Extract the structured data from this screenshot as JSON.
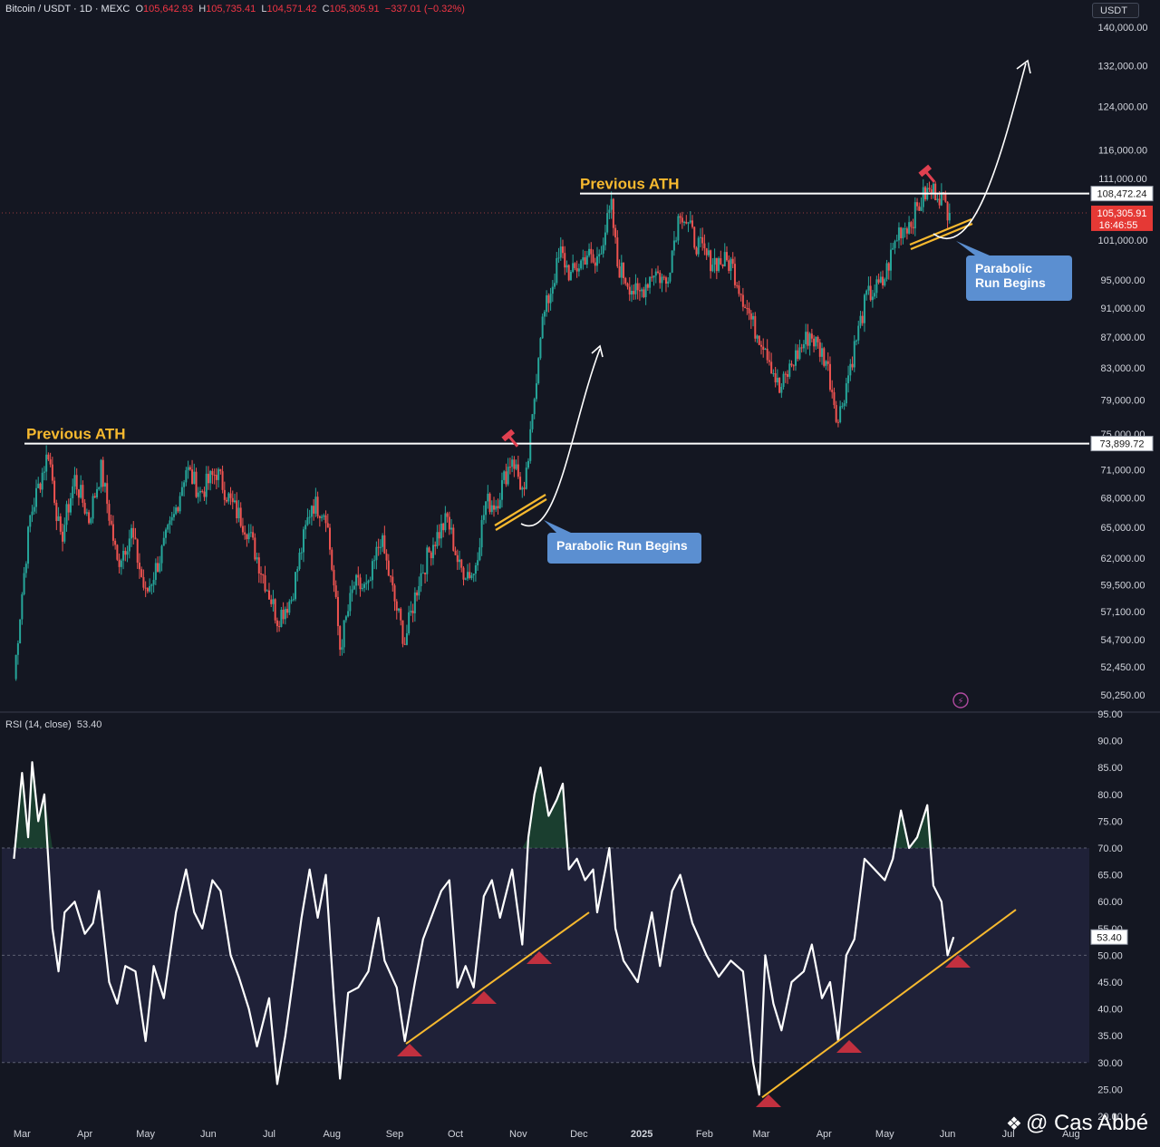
{
  "header": {
    "symbol": "Bitcoin / USDT · 1D · MEXC",
    "o_label": "O",
    "o_value": "105,642.93",
    "h_label": "H",
    "h_value": "105,735.41",
    "l_label": "L",
    "l_value": "104,571.42",
    "c_label": "C",
    "c_value": "105,305.91",
    "change": "−337.01 (−0.32%)"
  },
  "currency_button": "USDT",
  "watermark": "@ Cas Abbé",
  "colors": {
    "background": "#141722",
    "up_candle": "#26a69a",
    "down_candle": "#ef5350",
    "annotation_yellow": "#f7b92f",
    "callout_blue": "#5b8fd1",
    "price_tag_red": "#e53935",
    "rsi_line": "#ffffff",
    "rsi_band": "#1f2138",
    "marker_red": "#c2303f"
  },
  "chart_data": [
    {
      "type": "candlestick",
      "title": "Bitcoin / USDT · 1D · MEXC",
      "price_axis_labels": [
        "140,000.00",
        "132,000.00",
        "124,000.00",
        "116,000.00",
        "111,000.00",
        "101,000.00",
        "95,000.00",
        "91,000.00",
        "87,000.00",
        "83,000.00",
        "79,000.00",
        "75,000.00",
        "71,000.00",
        "68,000.00",
        "65,000.00",
        "62,000.00",
        "59,500.00",
        "57,100.00",
        "54,700.00",
        "52,450.00",
        "50,250.00"
      ],
      "x_tick_labels": [
        "Mar",
        "Apr",
        "May",
        "Jun",
        "Jul",
        "Aug",
        "Sep",
        "Oct",
        "Nov",
        "Dec",
        "2025",
        "Feb",
        "Mar",
        "Apr",
        "May",
        "Jun",
        "Jul",
        "Aug"
      ],
      "scale": "log",
      "ylim": [
        49000,
        142000
      ],
      "current_price": "105,305.91",
      "countdown": "16:46:55",
      "levels": [
        {
          "label": "Previous ATH",
          "value": 73899.72,
          "tag": "73,899.72"
        },
        {
          "label": "Previous ATH",
          "value": 108472.24,
          "tag": "108,472.24"
        }
      ],
      "callouts": [
        "Parabolic Run Begins",
        "Parabolic Run Begins"
      ],
      "close_path": [
        {
          "date": "2024-02-26",
          "close": 51500
        },
        {
          "date": "2024-03-05",
          "close": 66000
        },
        {
          "date": "2024-03-14",
          "close": 73000
        },
        {
          "date": "2024-03-20",
          "close": 63500
        },
        {
          "date": "2024-03-27",
          "close": 70000
        },
        {
          "date": "2024-04-03",
          "close": 65800
        },
        {
          "date": "2024-04-09",
          "close": 71000
        },
        {
          "date": "2024-04-17",
          "close": 61500
        },
        {
          "date": "2024-04-24",
          "close": 64500
        },
        {
          "date": "2024-05-01",
          "close": 58500
        },
        {
          "date": "2024-05-08",
          "close": 62000
        },
        {
          "date": "2024-05-15",
          "close": 66000
        },
        {
          "date": "2024-05-21",
          "close": 71200
        },
        {
          "date": "2024-05-28",
          "close": 68500
        },
        {
          "date": "2024-06-05",
          "close": 70800
        },
        {
          "date": "2024-06-12",
          "close": 67500
        },
        {
          "date": "2024-06-20",
          "close": 64900
        },
        {
          "date": "2024-06-26",
          "close": 61500
        },
        {
          "date": "2024-07-05",
          "close": 56500
        },
        {
          "date": "2024-07-12",
          "close": 58300
        },
        {
          "date": "2024-07-22",
          "close": 67500
        },
        {
          "date": "2024-07-29",
          "close": 66500
        },
        {
          "date": "2024-08-05",
          "close": 54000
        },
        {
          "date": "2024-08-12",
          "close": 59500
        },
        {
          "date": "2024-08-19",
          "close": 59000
        },
        {
          "date": "2024-08-25",
          "close": 64000
        },
        {
          "date": "2024-09-01",
          "close": 58000
        },
        {
          "date": "2024-09-06",
          "close": 54500
        },
        {
          "date": "2024-09-13",
          "close": 60000
        },
        {
          "date": "2024-09-20",
          "close": 63500
        },
        {
          "date": "2024-09-27",
          "close": 65800
        },
        {
          "date": "2024-10-03",
          "close": 61000
        },
        {
          "date": "2024-10-10",
          "close": 60500
        },
        {
          "date": "2024-10-16",
          "close": 67500
        },
        {
          "date": "2024-10-21",
          "close": 67400
        },
        {
          "date": "2024-10-29",
          "close": 72500
        },
        {
          "date": "2024-11-04",
          "close": 68000
        },
        {
          "date": "2024-11-08",
          "close": 76500
        },
        {
          "date": "2024-11-12",
          "close": 88000
        },
        {
          "date": "2024-11-22",
          "close": 99000
        },
        {
          "date": "2024-11-27",
          "close": 95500
        },
        {
          "date": "2024-12-05",
          "close": 99000
        },
        {
          "date": "2024-12-09",
          "close": 97000
        },
        {
          "date": "2024-12-17",
          "close": 106000
        },
        {
          "date": "2024-12-20",
          "close": 97200
        },
        {
          "date": "2024-12-30",
          "close": 92500
        },
        {
          "date": "2025-01-07",
          "close": 96500
        },
        {
          "date": "2025-01-13",
          "close": 94500
        },
        {
          "date": "2025-01-20",
          "close": 106000
        },
        {
          "date": "2025-01-27",
          "close": 101000
        },
        {
          "date": "2025-02-03",
          "close": 98000
        },
        {
          "date": "2025-02-14",
          "close": 97500
        },
        {
          "date": "2025-02-25",
          "close": 88500
        },
        {
          "date": "2025-03-03",
          "close": 86000
        },
        {
          "date": "2025-03-10",
          "close": 80000
        },
        {
          "date": "2025-03-17",
          "close": 84000
        },
        {
          "date": "2025-03-25",
          "close": 87500
        },
        {
          "date": "2025-04-02",
          "close": 84000
        },
        {
          "date": "2025-04-08",
          "close": 76500
        },
        {
          "date": "2025-04-15",
          "close": 84500
        },
        {
          "date": "2025-04-22",
          "close": 92500
        },
        {
          "date": "2025-04-30",
          "close": 94500
        },
        {
          "date": "2025-05-08",
          "close": 102500
        },
        {
          "date": "2025-05-14",
          "close": 104000
        },
        {
          "date": "2025-05-21",
          "close": 108500
        },
        {
          "date": "2025-05-27",
          "close": 109000
        },
        {
          "date": "2025-06-02",
          "close": 105300
        }
      ]
    },
    {
      "type": "line",
      "title": "RSI (14, close)",
      "last_value": "53.40",
      "y_tick_labels": [
        "95.00",
        "90.00",
        "85.00",
        "80.00",
        "75.00",
        "70.00",
        "65.00",
        "60.00",
        "55.00",
        "50.00",
        "45.00",
        "40.00",
        "35.00",
        "30.00",
        "25.00",
        "20.00"
      ],
      "ylim": [
        20,
        95
      ],
      "overbought": 70,
      "oversold": 30,
      "midline": 50,
      "series": [
        {
          "date": "2024-02-26",
          "rsi": 68
        },
        {
          "date": "2024-03-01",
          "rsi": 84
        },
        {
          "date": "2024-03-04",
          "rsi": 72
        },
        {
          "date": "2024-03-06",
          "rsi": 86
        },
        {
          "date": "2024-03-09",
          "rsi": 75
        },
        {
          "date": "2024-03-12",
          "rsi": 80
        },
        {
          "date": "2024-03-16",
          "rsi": 55
        },
        {
          "date": "2024-03-19",
          "rsi": 47
        },
        {
          "date": "2024-03-22",
          "rsi": 58
        },
        {
          "date": "2024-03-27",
          "rsi": 60
        },
        {
          "date": "2024-04-01",
          "rsi": 54
        },
        {
          "date": "2024-04-05",
          "rsi": 56
        },
        {
          "date": "2024-04-08",
          "rsi": 62
        },
        {
          "date": "2024-04-13",
          "rsi": 45
        },
        {
          "date": "2024-04-17",
          "rsi": 41
        },
        {
          "date": "2024-04-21",
          "rsi": 48
        },
        {
          "date": "2024-04-26",
          "rsi": 47
        },
        {
          "date": "2024-05-01",
          "rsi": 34
        },
        {
          "date": "2024-05-05",
          "rsi": 48
        },
        {
          "date": "2024-05-10",
          "rsi": 42
        },
        {
          "date": "2024-05-16",
          "rsi": 58
        },
        {
          "date": "2024-05-21",
          "rsi": 66
        },
        {
          "date": "2024-05-25",
          "rsi": 58
        },
        {
          "date": "2024-05-29",
          "rsi": 55
        },
        {
          "date": "2024-06-03",
          "rsi": 64
        },
        {
          "date": "2024-06-07",
          "rsi": 62
        },
        {
          "date": "2024-06-12",
          "rsi": 50
        },
        {
          "date": "2024-06-16",
          "rsi": 46
        },
        {
          "date": "2024-06-21",
          "rsi": 40
        },
        {
          "date": "2024-06-25",
          "rsi": 33
        },
        {
          "date": "2024-07-01",
          "rsi": 42
        },
        {
          "date": "2024-07-05",
          "rsi": 26
        },
        {
          "date": "2024-07-09",
          "rsi": 35
        },
        {
          "date": "2024-07-13",
          "rsi": 46
        },
        {
          "date": "2024-07-17",
          "rsi": 57
        },
        {
          "date": "2024-07-21",
          "rsi": 66
        },
        {
          "date": "2024-07-25",
          "rsi": 57
        },
        {
          "date": "2024-07-29",
          "rsi": 65
        },
        {
          "date": "2024-08-02",
          "rsi": 42
        },
        {
          "date": "2024-08-05",
          "rsi": 27
        },
        {
          "date": "2024-08-09",
          "rsi": 43
        },
        {
          "date": "2024-08-14",
          "rsi": 44
        },
        {
          "date": "2024-08-19",
          "rsi": 47
        },
        {
          "date": "2024-08-24",
          "rsi": 57
        },
        {
          "date": "2024-08-27",
          "rsi": 49
        },
        {
          "date": "2024-09-02",
          "rsi": 44
        },
        {
          "date": "2024-09-06",
          "rsi": 34
        },
        {
          "date": "2024-09-11",
          "rsi": 45
        },
        {
          "date": "2024-09-15",
          "rsi": 53
        },
        {
          "date": "2024-09-20",
          "rsi": 58
        },
        {
          "date": "2024-09-24",
          "rsi": 62
        },
        {
          "date": "2024-09-28",
          "rsi": 64
        },
        {
          "date": "2024-10-02",
          "rsi": 44
        },
        {
          "date": "2024-10-06",
          "rsi": 48
        },
        {
          "date": "2024-10-10",
          "rsi": 44
        },
        {
          "date": "2024-10-15",
          "rsi": 61
        },
        {
          "date": "2024-10-19",
          "rsi": 64
        },
        {
          "date": "2024-10-23",
          "rsi": 57
        },
        {
          "date": "2024-10-29",
          "rsi": 66
        },
        {
          "date": "2024-11-03",
          "rsi": 52
        },
        {
          "date": "2024-11-06",
          "rsi": 72
        },
        {
          "date": "2024-11-09",
          "rsi": 80
        },
        {
          "date": "2024-11-12",
          "rsi": 85
        },
        {
          "date": "2024-11-16",
          "rsi": 76
        },
        {
          "date": "2024-11-20",
          "rsi": 79
        },
        {
          "date": "2024-11-23",
          "rsi": 82
        },
        {
          "date": "2024-11-26",
          "rsi": 66
        },
        {
          "date": "2024-11-30",
          "rsi": 68
        },
        {
          "date": "2024-12-04",
          "rsi": 64
        },
        {
          "date": "2024-12-08",
          "rsi": 66
        },
        {
          "date": "2024-12-10",
          "rsi": 58
        },
        {
          "date": "2024-12-16",
          "rsi": 70
        },
        {
          "date": "2024-12-19",
          "rsi": 55
        },
        {
          "date": "2024-12-23",
          "rsi": 49
        },
        {
          "date": "2024-12-30",
          "rsi": 45
        },
        {
          "date": "2025-01-06",
          "rsi": 58
        },
        {
          "date": "2025-01-10",
          "rsi": 48
        },
        {
          "date": "2025-01-16",
          "rsi": 62
        },
        {
          "date": "2025-01-20",
          "rsi": 65
        },
        {
          "date": "2025-01-26",
          "rsi": 56
        },
        {
          "date": "2025-02-02",
          "rsi": 50
        },
        {
          "date": "2025-02-08",
          "rsi": 46
        },
        {
          "date": "2025-02-14",
          "rsi": 49
        },
        {
          "date": "2025-02-20",
          "rsi": 47
        },
        {
          "date": "2025-02-25",
          "rsi": 30
        },
        {
          "date": "2025-02-28",
          "rsi": 24
        },
        {
          "date": "2025-03-03",
          "rsi": 50
        },
        {
          "date": "2025-03-07",
          "rsi": 41
        },
        {
          "date": "2025-03-11",
          "rsi": 36
        },
        {
          "date": "2025-03-16",
          "rsi": 45
        },
        {
          "date": "2025-03-22",
          "rsi": 47
        },
        {
          "date": "2025-03-26",
          "rsi": 52
        },
        {
          "date": "2025-03-31",
          "rsi": 42
        },
        {
          "date": "2025-04-04",
          "rsi": 45
        },
        {
          "date": "2025-04-08",
          "rsi": 34
        },
        {
          "date": "2025-04-12",
          "rsi": 50
        },
        {
          "date": "2025-04-16",
          "rsi": 53
        },
        {
          "date": "2025-04-21",
          "rsi": 68
        },
        {
          "date": "2025-04-26",
          "rsi": 66
        },
        {
          "date": "2025-05-01",
          "rsi": 64
        },
        {
          "date": "2025-05-05",
          "rsi": 68
        },
        {
          "date": "2025-05-09",
          "rsi": 77
        },
        {
          "date": "2025-05-13",
          "rsi": 70
        },
        {
          "date": "2025-05-17",
          "rsi": 72
        },
        {
          "date": "2025-05-22",
          "rsi": 78
        },
        {
          "date": "2025-05-25",
          "rsi": 63
        },
        {
          "date": "2025-05-29",
          "rsi": 60
        },
        {
          "date": "2025-06-01",
          "rsi": 50
        },
        {
          "date": "2025-06-04",
          "rsi": 53.4
        }
      ]
    }
  ]
}
